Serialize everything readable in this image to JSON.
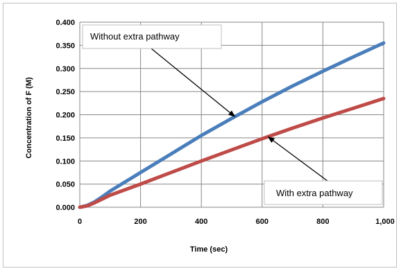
{
  "chart_data": {
    "type": "line",
    "title": "",
    "xlabel": "Time (sec)",
    "ylabel": "Concentration of F (M)",
    "xlim": [
      0,
      1000
    ],
    "ylim": [
      0,
      0.4
    ],
    "x_ticks": [
      0,
      200,
      400,
      600,
      800,
      1000
    ],
    "x_tick_labels": [
      "0",
      "200",
      "400",
      "600",
      "800",
      "1,000"
    ],
    "y_ticks": [
      0,
      0.05,
      0.1,
      0.15,
      0.2,
      0.25,
      0.3,
      0.35,
      0.4
    ],
    "y_tick_labels": [
      "0.000",
      "0.050",
      "0.100",
      "0.150",
      "0.200",
      "0.250",
      "0.300",
      "0.350",
      "0.400"
    ],
    "grid": true,
    "series": [
      {
        "color": "#4a7ebb",
        "x": [
          0,
          25,
          50,
          75,
          100,
          150,
          200,
          300,
          400,
          500,
          600,
          700,
          800,
          900,
          1000
        ],
        "y": [
          0,
          0.004,
          0.012,
          0.023,
          0.035,
          0.055,
          0.075,
          0.115,
          0.155,
          0.192,
          0.228,
          0.262,
          0.294,
          0.325,
          0.355
        ]
      },
      {
        "color": "#be4b48",
        "x": [
          0,
          25,
          50,
          75,
          100,
          150,
          200,
          300,
          400,
          500,
          600,
          700,
          800,
          900,
          1000
        ],
        "y": [
          0,
          0.003,
          0.01,
          0.018,
          0.026,
          0.038,
          0.05,
          0.075,
          0.1,
          0.124,
          0.148,
          0.171,
          0.193,
          0.214,
          0.235
        ]
      }
    ],
    "annotations": [
      {
        "text": "Without extra pathway",
        "points_to": [
          510,
          0.196
        ]
      },
      {
        "text": "With extra pathway",
        "points_to": [
          620,
          0.152
        ]
      }
    ]
  }
}
